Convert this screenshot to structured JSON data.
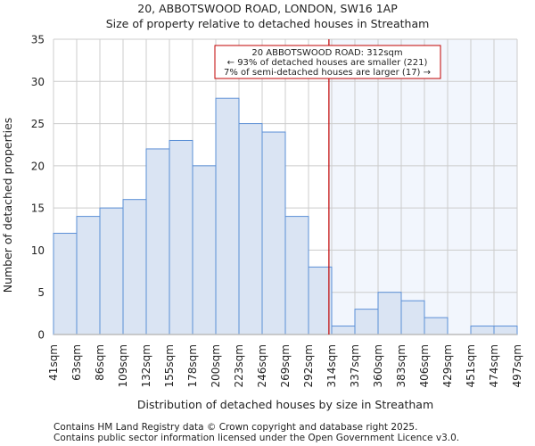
{
  "chart_data": {
    "type": "bar",
    "title": "20, ABBOTSWOOD ROAD, LONDON, SW16 1AP",
    "subtitle": "Size of property relative to detached houses in Streatham",
    "xlabel": "Distribution of detached houses by size in Streatham",
    "ylabel": "Number of detached properties",
    "ylim": [
      0,
      35
    ],
    "yticks": [
      0,
      5,
      10,
      15,
      20,
      25,
      30,
      35
    ],
    "tick_labels": [
      "41sqm",
      "63sqm",
      "86sqm",
      "109sqm",
      "132sqm",
      "155sqm",
      "178sqm",
      "200sqm",
      "223sqm",
      "246sqm",
      "269sqm",
      "292sqm",
      "314sqm",
      "337sqm",
      "360sqm",
      "383sqm",
      "406sqm",
      "429sqm",
      "451sqm",
      "474sqm",
      "497sqm"
    ],
    "values": [
      12,
      14,
      15,
      16,
      22,
      23,
      20,
      28,
      25,
      24,
      14,
      8,
      1,
      3,
      5,
      4,
      2,
      0,
      1,
      1
    ],
    "grid": true,
    "marker": {
      "value_sqm": 312,
      "bin_position": 11.88
    },
    "annotation": {
      "line1": "20 ABBOTSWOOD ROAD: 312sqm",
      "line2": "← 93% of detached houses are smaller (221)",
      "line3": "7% of semi-detached houses are larger (17) →"
    },
    "colors": {
      "bar_fill": "#dae4f3",
      "bar_edge": "#5b8fd6",
      "marker": "#c00000",
      "highlight": "#f2f6fd",
      "grid": "#cccccc"
    }
  },
  "footer": {
    "line1": "Contains HM Land Registry data © Crown copyright and database right 2025.",
    "line2": "Contains public sector information licensed under the Open Government Licence v3.0."
  }
}
